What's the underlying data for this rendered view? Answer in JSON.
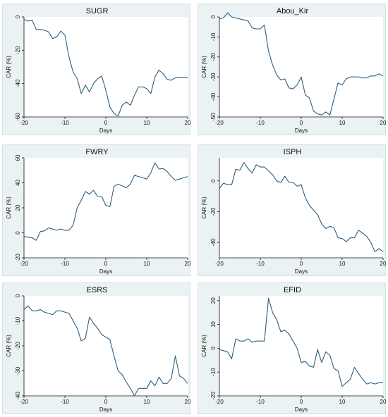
{
  "colors": {
    "panel_bg": "#eaf2f3",
    "line": "#2e5d7d"
  },
  "chart_data": [
    {
      "type": "line",
      "title": "SUGR",
      "xlabel": "Days",
      "ylabel": "CAR (%)",
      "xlim": [
        -20,
        20
      ],
      "ylim": [
        -60,
        0
      ],
      "xticks": [
        -20,
        -10,
        0,
        10,
        20
      ],
      "yticks": [
        -60,
        -40,
        -20,
        0
      ],
      "x": [
        -20,
        -19,
        -18,
        -17,
        -16,
        -15,
        -14,
        -13,
        -12,
        -11,
        -10,
        -9,
        -8,
        -7,
        -6,
        -5,
        -4,
        -3,
        -2,
        -1,
        0,
        1,
        2,
        3,
        4,
        5,
        6,
        7,
        8,
        9,
        10,
        11,
        12,
        13,
        14,
        15,
        16,
        17,
        18,
        19,
        20
      ],
      "y": [
        -1.5,
        -2.5,
        -2,
        -7.5,
        -7.5,
        -8,
        -9,
        -13,
        -12,
        -8.5,
        -11,
        -24,
        -33,
        -37,
        -46,
        -41,
        -45,
        -40,
        -37,
        -35.5,
        -44,
        -54,
        -58,
        -59.5,
        -53,
        -51,
        -53,
        -47,
        -42,
        -42,
        -43,
        -46,
        -36,
        -32,
        -34,
        -37.5,
        -38,
        -36.5,
        -36.5,
        -36.5,
        -36.5
      ]
    },
    {
      "type": "line",
      "title": "Abou_Kir",
      "xlabel": "Days",
      "ylabel": "CAR (%)",
      "xlim": [
        -20,
        20
      ],
      "ylim": [
        -50,
        0
      ],
      "xticks": [
        -20,
        -10,
        0,
        10,
        20
      ],
      "yticks": [
        -50,
        -40,
        -30,
        -20,
        -10,
        0
      ],
      "x": [
        -20,
        -19,
        -18,
        -17,
        -16,
        -15,
        -14,
        -13,
        -12,
        -11,
        -10,
        -9,
        -8,
        -7,
        -6,
        -5,
        -4,
        -3,
        -2,
        -1,
        0,
        1,
        2,
        3,
        4,
        5,
        6,
        7,
        8,
        9,
        10,
        11,
        12,
        13,
        14,
        15,
        16,
        17,
        18,
        19,
        20
      ],
      "y": [
        -1,
        -0.5,
        2,
        0,
        -0.5,
        -1,
        -1.5,
        -2,
        -5.5,
        -6,
        -6,
        -4,
        -17,
        -24,
        -29,
        -31.5,
        -31,
        -35.5,
        -36,
        -34,
        -30,
        -39,
        -40.5,
        -47,
        -48.5,
        -49,
        -47.5,
        -49,
        -41,
        -33,
        -34,
        -31,
        -30,
        -30,
        -30,
        -30.5,
        -30.5,
        -29.5,
        -29.5,
        -28.5,
        -29.5
      ]
    },
    {
      "type": "line",
      "title": "FWRY",
      "xlabel": "Days",
      "ylabel": "CAR (%)",
      "xlim": [
        -20,
        20
      ],
      "ylim": [
        -20,
        60
      ],
      "xticks": [
        -20,
        -10,
        0,
        10,
        20
      ],
      "yticks": [
        -20,
        0,
        20,
        40,
        60
      ],
      "x": [
        -20,
        -19,
        -18,
        -17,
        -16,
        -15,
        -14,
        -13,
        -12,
        -11,
        -10,
        -9,
        -8,
        -7,
        -6,
        -5,
        -4,
        -3,
        -2,
        -1,
        0,
        1,
        2,
        3,
        4,
        5,
        6,
        7,
        8,
        9,
        10,
        11,
        12,
        13,
        14,
        15,
        16,
        17,
        18,
        19,
        20
      ],
      "y": [
        -3,
        -3.5,
        -4,
        -6,
        1,
        1.5,
        4,
        3,
        2,
        3,
        2,
        2,
        6,
        20,
        26,
        33,
        31,
        34,
        29,
        29,
        22,
        21,
        37,
        39,
        37.5,
        36,
        39,
        46,
        45,
        44,
        43,
        48,
        56,
        51,
        51.5,
        49,
        45,
        42,
        43,
        44,
        45
      ]
    },
    {
      "type": "line",
      "title": "ISPH",
      "xlabel": "Days",
      "ylabel": "CAR (%)",
      "xlim": [
        -20,
        20
      ],
      "ylim": [
        -50,
        15
      ],
      "xticks": [
        -20,
        -10,
        0,
        10,
        20
      ],
      "yticks": [
        -40,
        -20,
        0
      ],
      "x": [
        -20,
        -19,
        -18,
        -17,
        -16,
        -15,
        -14,
        -13,
        -12,
        -11,
        -10,
        -9,
        -8,
        -7,
        -6,
        -5,
        -4,
        -3,
        -2,
        -1,
        0,
        1,
        2,
        3,
        4,
        5,
        6,
        7,
        8,
        9,
        10,
        11,
        12,
        13,
        14,
        15,
        16,
        17,
        18,
        19,
        20
      ],
      "y": [
        -5,
        -1.5,
        -2.5,
        -2.5,
        7.5,
        7,
        12,
        8,
        5,
        10.5,
        9,
        9,
        6.5,
        4,
        0,
        -1,
        3,
        -1,
        -1,
        -3.5,
        -2.5,
        -11,
        -16,
        -19,
        -22,
        -28,
        -31,
        -29.5,
        -30.5,
        -37,
        -37.5,
        -39.5,
        -37,
        -37,
        -32,
        -34,
        -36,
        -40,
        -46,
        -44,
        -46
      ]
    },
    {
      "type": "line",
      "title": "ESRS",
      "xlabel": "Days",
      "ylabel": "CAR (%)",
      "xlim": [
        -20,
        20
      ],
      "ylim": [
        -40,
        0
      ],
      "xticks": [
        -20,
        -10,
        0,
        10,
        20
      ],
      "yticks": [
        -40,
        -30,
        -20,
        -10,
        0
      ],
      "x": [
        -20,
        -19,
        -18,
        -17,
        -16,
        -15,
        -14,
        -13,
        -12,
        -11,
        -10,
        -9,
        -8,
        -7,
        -6,
        -5,
        -4,
        -3,
        -2,
        -1,
        0,
        1,
        2,
        3,
        4,
        5,
        6,
        7,
        8,
        9,
        10,
        11,
        12,
        13,
        14,
        15,
        16,
        17,
        18,
        19,
        20
      ],
      "y": [
        -5.5,
        -4,
        -6,
        -6,
        -5.5,
        -6.5,
        -7,
        -7.5,
        -6,
        -6,
        -6.5,
        -7,
        -10,
        -13,
        -18,
        -17,
        -8.5,
        -11,
        -13,
        -15.5,
        -16.5,
        -17.5,
        -24,
        -30,
        -31.5,
        -34.5,
        -37,
        -40,
        -37,
        -37,
        -37,
        -34,
        -36,
        -32.5,
        -35,
        -35,
        -33,
        -24,
        -32,
        -33,
        -35
      ]
    },
    {
      "type": "line",
      "title": "EFID",
      "xlabel": "Days",
      "ylabel": "CAR (%)",
      "xlim": [
        -20,
        20
      ],
      "ylim": [
        -20,
        22
      ],
      "xticks": [
        -20,
        -10,
        0,
        10,
        20
      ],
      "yticks": [
        -20,
        -10,
        0,
        10,
        20
      ],
      "x": [
        -20,
        -19,
        -18,
        -17,
        -16,
        -15,
        -14,
        -13,
        -12,
        -11,
        -10,
        -9,
        -8,
        -7,
        -6,
        -5,
        -4,
        -3,
        -2,
        -1,
        0,
        1,
        2,
        3,
        4,
        5,
        6,
        7,
        8,
        9,
        10,
        11,
        12,
        13,
        14,
        15,
        16,
        17,
        18,
        19,
        20
      ],
      "y": [
        -0.5,
        -1,
        -1.5,
        -4.5,
        4,
        3,
        3,
        4,
        2.5,
        3,
        3,
        3,
        21,
        15,
        12,
        7,
        7.5,
        6,
        3,
        0,
        -6,
        -5.5,
        -7.5,
        -8,
        -0.5,
        -6,
        -1.5,
        -3,
        -8.5,
        -9.5,
        -16,
        -14.5,
        -13,
        -8,
        -10.5,
        -13,
        -15,
        -14.5,
        -15,
        -14.5,
        -14.5
      ]
    }
  ]
}
